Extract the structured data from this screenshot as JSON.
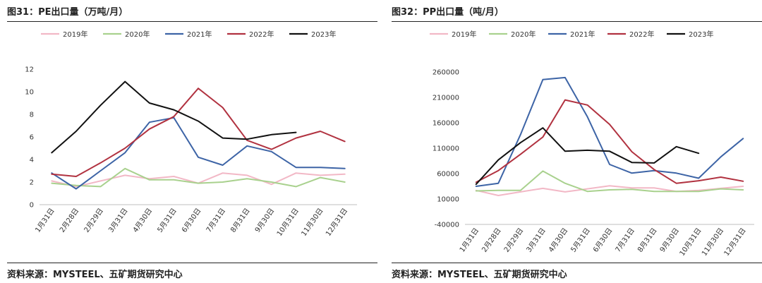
{
  "panels": [
    {
      "title": "图31：PE出口量（万吨/月）",
      "source": "资料来源：MYSTEEL、五矿期货研究中心"
    },
    {
      "title": "图32：PP出口量（吨/月）",
      "source": "资料来源：MYSTEEL、五矿期货研究中心"
    }
  ],
  "chart_data": [
    {
      "type": "line",
      "title": "图31：PE出口量（万吨/月）",
      "categories": [
        "1月31日",
        "2月28日",
        "2月29日",
        "3月31日",
        "4月30日",
        "5月31日",
        "6月30日",
        "7月31日",
        "8月31日",
        "9月30日",
        "10月31日",
        "11月30日",
        "12月31日"
      ],
      "ylim": [
        0,
        12
      ],
      "yticks": [
        0,
        2,
        4,
        6,
        8,
        10,
        12
      ],
      "grid": false,
      "legend_position": "top",
      "series": [
        {
          "name": "2019年",
          "color": "#f2b8c6",
          "values": [
            2.1,
            1.6,
            2.1,
            2.6,
            2.3,
            2.5,
            1.9,
            2.8,
            2.6,
            1.8,
            2.8,
            2.6,
            2.7
          ]
        },
        {
          "name": "2020年",
          "color": "#a9d18e",
          "values": [
            1.9,
            1.7,
            1.6,
            3.2,
            2.2,
            2.2,
            1.9,
            2.0,
            2.3,
            2.0,
            1.6,
            2.4,
            2.0
          ]
        },
        {
          "name": "2021年",
          "color": "#3d64a6",
          "values": [
            2.8,
            1.4,
            3.0,
            4.6,
            7.3,
            7.7,
            4.2,
            3.5,
            5.2,
            4.7,
            3.3,
            3.3,
            3.2
          ]
        },
        {
          "name": "2022年",
          "color": "#b13240",
          "values": [
            2.7,
            2.5,
            3.7,
            5.0,
            6.7,
            7.8,
            10.3,
            8.6,
            5.7,
            4.9,
            5.9,
            6.5,
            5.6
          ]
        },
        {
          "name": "2023年",
          "color": "#111111",
          "values": [
            4.6,
            6.5,
            8.8,
            10.9,
            9.0,
            8.4,
            7.4,
            5.9,
            5.8,
            6.2,
            6.4,
            null,
            null
          ]
        }
      ]
    },
    {
      "type": "line",
      "title": "图32：PP出口量（吨/月）",
      "categories": [
        "1月31日",
        "2月28日",
        "2月29日",
        "3月31日",
        "4月30日",
        "5月31日",
        "6月30日",
        "7月31日",
        "8月31日",
        "9月30日",
        "10月31日",
        "11月30日",
        "12月31日"
      ],
      "ylim": [
        -40000,
        260000
      ],
      "yticks": [
        -40000,
        10000,
        60000,
        110000,
        160000,
        210000,
        260000
      ],
      "grid": false,
      "legend_position": "top",
      "series": [
        {
          "name": "2019年",
          "color": "#f2b8c6",
          "values": [
            27000,
            17000,
            24000,
            31000,
            24000,
            30000,
            36000,
            32000,
            32000,
            25000,
            27000,
            31000,
            35000
          ]
        },
        {
          "name": "2020年",
          "color": "#a9d18e",
          "values": [
            26000,
            27000,
            27000,
            65000,
            41000,
            25000,
            28000,
            29000,
            25000,
            25000,
            25000,
            30000,
            28000
          ]
        },
        {
          "name": "2021年",
          "color": "#3d64a6",
          "values": [
            35000,
            41000,
            137000,
            245000,
            249000,
            172000,
            78000,
            61000,
            66000,
            61000,
            51000,
            93000,
            129000
          ]
        },
        {
          "name": "2022年",
          "color": "#b13240",
          "values": [
            43000,
            66000,
            98000,
            132000,
            205000,
            195000,
            157000,
            103000,
            68000,
            41000,
            46000,
            53000,
            45000
          ]
        },
        {
          "name": "2023年",
          "color": "#111111",
          "values": [
            39000,
            87000,
            121000,
            150000,
            104000,
            106000,
            104000,
            82000,
            81000,
            113000,
            100000,
            null,
            null
          ]
        }
      ]
    }
  ]
}
